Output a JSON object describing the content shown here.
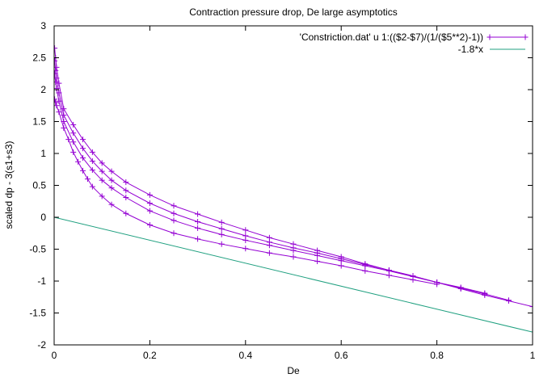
{
  "chart_data": {
    "type": "line",
    "title": "Contraction pressure drop, De large asymptotics",
    "xlabel": "De",
    "ylabel": "scaled dp - 3(s1+s3)",
    "xlim": [
      0,
      1
    ],
    "ylim": [
      -2,
      3
    ],
    "x_ticks": [
      "0",
      "0.2",
      "0.4",
      "0.6",
      "0.8",
      "1"
    ],
    "y_ticks": [
      "3",
      "2.5",
      "2",
      "1.5",
      "1",
      "0.5",
      "0",
      "-0.5",
      "-1",
      "-1.5",
      "-2"
    ],
    "grid": false,
    "legend_position": "top-right",
    "colors": {
      "data": "#9400d3",
      "fit": "#20a080"
    },
    "series": [
      {
        "name": "'Constriction.dat' u 1:(($2-$7)/(1/($5**2)-1))",
        "style": "linespoints",
        "color": "#9400d3",
        "curves": [
          {
            "points": [
              [
                0.001,
                2.65
              ],
              [
                0.003,
                2.5
              ],
              [
                0.005,
                2.35
              ],
              [
                0.01,
                2.1
              ],
              [
                0.02,
                1.7
              ],
              [
                0.04,
                1.45
              ],
              [
                0.06,
                1.22
              ],
              [
                0.08,
                1.02
              ],
              [
                0.1,
                0.85
              ],
              [
                0.12,
                0.72
              ],
              [
                0.15,
                0.55
              ],
              [
                0.2,
                0.35
              ],
              [
                0.25,
                0.18
              ],
              [
                0.3,
                0.05
              ],
              [
                0.35,
                -0.08
              ],
              [
                0.4,
                -0.2
              ],
              [
                0.45,
                -0.32
              ],
              [
                0.5,
                -0.42
              ],
              [
                0.55,
                -0.52
              ],
              [
                0.6,
                -0.62
              ],
              [
                0.65,
                -0.73
              ],
              [
                0.7,
                -0.83
              ],
              [
                0.75,
                -0.92
              ],
              [
                0.8,
                -1.02
              ],
              [
                0.85,
                -1.12
              ],
              [
                0.9,
                -1.22
              ],
              [
                0.95,
                -1.31
              ],
              [
                1.0,
                -1.4
              ]
            ]
          },
          {
            "points": [
              [
                0.001,
                2.45
              ],
              [
                0.003,
                2.3
              ],
              [
                0.005,
                2.18
              ],
              [
                0.01,
                1.95
              ],
              [
                0.02,
                1.6
              ],
              [
                0.04,
                1.32
              ],
              [
                0.06,
                1.08
              ],
              [
                0.08,
                0.88
              ],
              [
                0.1,
                0.72
              ],
              [
                0.12,
                0.58
              ],
              [
                0.15,
                0.42
              ],
              [
                0.2,
                0.22
              ],
              [
                0.25,
                0.06
              ],
              [
                0.3,
                -0.07
              ],
              [
                0.35,
                -0.18
              ],
              [
                0.4,
                -0.29
              ],
              [
                0.45,
                -0.39
              ],
              [
                0.5,
                -0.48
              ],
              [
                0.55,
                -0.56
              ],
              [
                0.6,
                -0.65
              ],
              [
                0.65,
                -0.74
              ],
              [
                0.7,
                -0.83
              ],
              [
                0.75,
                -0.92
              ],
              [
                0.8,
                -1.02
              ],
              [
                0.85,
                -1.11
              ],
              [
                0.9,
                -1.2
              ],
              [
                0.95,
                -1.3
              ]
            ]
          },
          {
            "points": [
              [
                0.001,
                2.25
              ],
              [
                0.003,
                2.12
              ],
              [
                0.005,
                2.02
              ],
              [
                0.01,
                1.82
              ],
              [
                0.02,
                1.5
              ],
              [
                0.04,
                1.18
              ],
              [
                0.06,
                0.93
              ],
              [
                0.08,
                0.74
              ],
              [
                0.1,
                0.58
              ],
              [
                0.12,
                0.46
              ],
              [
                0.15,
                0.31
              ],
              [
                0.2,
                0.1
              ],
              [
                0.25,
                -0.05
              ],
              [
                0.3,
                -0.17
              ],
              [
                0.35,
                -0.27
              ],
              [
                0.4,
                -0.36
              ],
              [
                0.45,
                -0.44
              ],
              [
                0.5,
                -0.52
              ],
              [
                0.55,
                -0.6
              ],
              [
                0.6,
                -0.68
              ],
              [
                0.65,
                -0.76
              ],
              [
                0.7,
                -0.84
              ],
              [
                0.75,
                -0.93
              ],
              [
                0.8,
                -1.02
              ],
              [
                0.85,
                -1.1
              ],
              [
                0.9,
                -1.19
              ]
            ]
          },
          {
            "points": [
              [
                0.001,
                1.85
              ],
              [
                0.003,
                1.8
              ],
              [
                0.005,
                1.75
              ],
              [
                0.01,
                1.65
              ],
              [
                0.02,
                1.4
              ],
              [
                0.03,
                1.22
              ],
              [
                0.04,
                1.02
              ],
              [
                0.05,
                0.87
              ],
              [
                0.06,
                0.73
              ],
              [
                0.07,
                0.6
              ],
              [
                0.08,
                0.48
              ],
              [
                0.1,
                0.33
              ],
              [
                0.12,
                0.2
              ],
              [
                0.15,
                0.06
              ],
              [
                0.2,
                -0.12
              ],
              [
                0.25,
                -0.25
              ],
              [
                0.3,
                -0.34
              ],
              [
                0.35,
                -0.42
              ],
              [
                0.4,
                -0.49
              ],
              [
                0.45,
                -0.56
              ],
              [
                0.5,
                -0.62
              ],
              [
                0.55,
                -0.69
              ],
              [
                0.6,
                -0.76
              ],
              [
                0.65,
                -0.84
              ],
              [
                0.7,
                -0.91
              ],
              [
                0.75,
                -0.98
              ],
              [
                0.8,
                -1.05
              ]
            ]
          }
        ]
      },
      {
        "name": "-1.8*x",
        "style": "line",
        "color": "#20a080",
        "function": {
          "slope": -1.8,
          "intercept": 0
        }
      }
    ]
  }
}
